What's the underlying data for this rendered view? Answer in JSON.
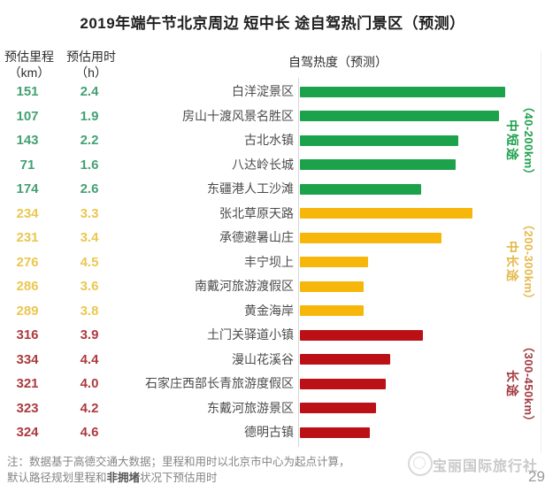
{
  "title": "2019年端午节北京周边 短中长 途自驾热门景区（预测）",
  "headers": {
    "distance_l1": "预估里程",
    "distance_l2": "（km）",
    "duration_l1": "预估用时",
    "duration_l2": "（h）",
    "heat": "自驾热度（预测）"
  },
  "chart_data": {
    "type": "bar",
    "orientation": "horizontal",
    "title": "自驾热度（预测）",
    "value_note": "热度为相对值，按最长条=100估读",
    "categories": [
      "白洋淀景区",
      "房山十渡风景名胜区",
      "古北水镇",
      "八达岭长城",
      "东疆港人工沙滩",
      "张北草原天路",
      "承德避暑山庄",
      "丰宁坝上",
      "南戴河旅游渡假区",
      "黄金海岸",
      "土门关驿道小镇",
      "漫山花溪谷",
      "石家庄西部长青旅游度假区",
      "东戴河旅游景区",
      "德明古镇"
    ],
    "series": [
      {
        "name": "预估里程（km）",
        "values": [
          151,
          107,
          143,
          71,
          174,
          234,
          231,
          276,
          286,
          289,
          316,
          334,
          321,
          323,
          324
        ]
      },
      {
        "name": "预估用时（h）",
        "values": [
          2.4,
          1.9,
          2.2,
          1.6,
          2.6,
          3.3,
          3.4,
          4.5,
          3.6,
          3.8,
          3.9,
          4.4,
          4.0,
          4.2,
          4.6
        ]
      },
      {
        "name": "自驾热度（预测，相对值0-100）",
        "values": [
          100,
          97,
          77,
          76,
          59,
          84,
          69,
          33,
          31,
          31,
          60,
          44,
          42,
          37,
          34
        ]
      }
    ],
    "groups": [
      {
        "label": "中短途",
        "range": "（40-200km）",
        "start": 0,
        "end": 4,
        "bar_color": "#1ba24b",
        "num_color": "#43a173",
        "label_color": "#1fa14d"
      },
      {
        "label": "中长途",
        "range": "（200-300km）",
        "start": 5,
        "end": 9,
        "bar_color": "#f7b70a",
        "num_color": "#eac74f",
        "label_color": "#e3b94a"
      },
      {
        "label": "长途",
        "range": "（300-450km）",
        "start": 10,
        "end": 14,
        "bar_color": "#bb1016",
        "num_color": "#ac3a3e",
        "label_color": "#a23a40"
      }
    ]
  },
  "display_h": [
    "2.4",
    "1.9",
    "2.2",
    "1.6",
    "2.6",
    "3.3",
    "3.4",
    "4.5",
    "3.6",
    "3.8",
    "3.9",
    "4.4",
    "4.0",
    "4.2",
    "4.6"
  ],
  "footnote": {
    "line1": "注：数据基于高德交通大数据；里程和用时以北京市中心为起点计算，",
    "line2_pre": "默认路径规划里程和",
    "line2_bold": "非拥堵",
    "line2_post": "状况下预估用时"
  },
  "watermark": "宝丽国际旅行社",
  "page_corner": "29"
}
